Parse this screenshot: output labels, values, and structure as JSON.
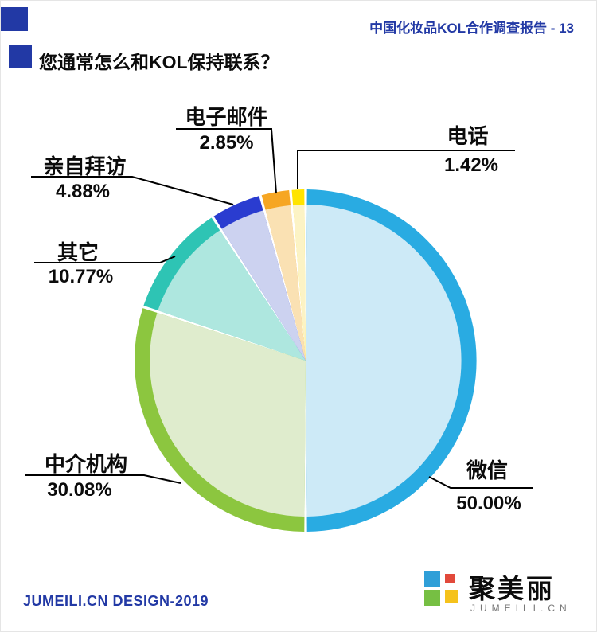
{
  "header": {
    "report_title": "中国化妆品KOL合作调查报告 - 13"
  },
  "title": {
    "text": "您通常怎么和KOL保持联系？"
  },
  "chart_data": {
    "type": "pie",
    "title": "您通常怎么和KOL保持联系？",
    "start_angle_deg": 0,
    "direction": "clockwise",
    "legend_position": "none",
    "style": "pie with darker outer ring band, white gaps between slices, black leader lines to labels",
    "slices": [
      {
        "label": "微信",
        "value": 50.0,
        "pct_text": "50.00%",
        "ring_color": "#29abe2",
        "fill_color": "#cdeaf7"
      },
      {
        "label": "中介机构",
        "value": 30.08,
        "pct_text": "30.08%",
        "ring_color": "#8cc63f",
        "fill_color": "#dfeccd"
      },
      {
        "label": "其它",
        "value": 10.77,
        "pct_text": "10.77%",
        "ring_color": "#2ec4b4",
        "fill_color": "#aee7df"
      },
      {
        "label": "亲自拜访",
        "value": 4.88,
        "pct_text": "4.88%",
        "ring_color": "#2a3cd0",
        "fill_color": "#ccd2f0"
      },
      {
        "label": "电子邮件",
        "value": 2.85,
        "pct_text": "2.85%",
        "ring_color": "#f6a623",
        "fill_color": "#fae1b3"
      },
      {
        "label": "电话",
        "value": 1.42,
        "pct_text": "1.42%",
        "ring_color": "#ffe400",
        "fill_color": "#fcf3c5"
      }
    ]
  },
  "footer": {
    "credit": "JUMEILI.CN DESIGN-2019",
    "brand_name": "聚美丽",
    "brand_domain": "JUMEILI.CN"
  },
  "colors": {
    "accent_blue": "#2239a5",
    "leader_line": "#000000"
  }
}
